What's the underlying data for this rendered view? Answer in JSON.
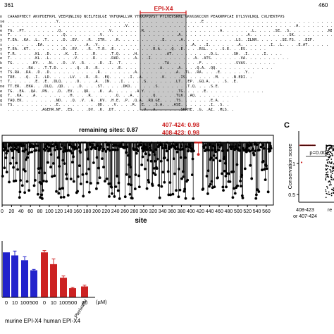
{
  "alignment": {
    "start_pos": "361",
    "end_pos": "460",
    "highlight_label": "EPI-X4",
    "row_labels": [
      "n",
      "se",
      "g",
      "e",
      "s",
      "y",
      "s",
      "y",
      "t",
      "e",
      "k",
      "n",
      "t",
      "s",
      "t",
      "ne",
      "e",
      "g",
      "g",
      "s",
      ""
    ],
    "rows": [
      "CAAADPHECY AKVFDEFKPL VEEPQNLIKQ NCELFEQLGE YKFQNALLVR YTKKVPQVST PTLVEVSRNL GKVGSKCCKH PEAKRMPCAE DYLSVVLNQL CVLHEKTPVS",
      ". . . . . . . . . . .Y. . . . . . . . . . . . . . . . . . . . . .  . . . . . . . . .E . . . . . . . . . . . . . . . . . . . . . . . . . . . . . . . . . .A . . . . . . . . . . . . . . . . .",
      ". . . . . . . . . . . . . . . . . . . . . . . . . .V. . . . . . . . . . . . . . . . . . . . . . . . . . . . . . . . . . . . .A. . . . . . . . . . .E. . . . . . . . . . . . . . . . .",
      "TG. .PT. . . . . . . .Q. . . . . . . . . . .V. . . . . . .R. . . . . . . . . . . . . . . . .A. . . . . . .L. . . . .SE. .S. . . . . . . . .NE. . . . . .",
      "T. . . . . . . . . . . .Q. . . . . . . .V. . . . . . . . . . . . . . . . .A. . . . . . . . . . . . . . .A. . . . . . . . .SK. . . . . . . . . . .SE. .L. .",
      "T.EA. .KA. .L. .T. . . .D. .EV. . .R. .ITR. . .R. . . . . . . . . .E. . . .A. . . . . . . . . . . .LS. .ILNR. . . . . .SE.FS. . .EIF.",
      ". . . . . . .EA. . . . . . . . . .A. .V. . . . . . . . . . . . . . . . . . . . .A. . .I. . . . . . .A. . . . . . .I. .L. . . .E.AT. . . . .",
      "T.EA. .KT. . . . . . . .D. .EV. . .R. .T.R. .E. . . . . . . . .R.A. . .Q. .E. . . .RSL. . . .S.E. . .ES. . . . .",
      "T.R. . . . .KL. .D. . . .K. .I. . . .R. . . .T.Q. . . .H. . . . . . .AT. . . . . . . . .D.L. . . .SH. .I. . . .I. . . .",
      "T. . . . . .KL. .L. . . . . .V. . . .R. . . .RAD. . . .A. . .I. . . . . . . . . .A. .ATS. . . . . . .VA. . . . . . . . . .",
      "TG. . . . .KY. . .N. . .D. .V. .R. . . .R. .I. .T. . . . . . . . . .TA. . . . . . .F. . . . . . . .SVAS. . . . . . .",
      ". . . . .RA. . .T.T.D. . . . .Q. .D. .R. . . . .E. . . . . . . . .A. . . .A. . . .Q.A. .QQ. . . . . . . . . . . . .",
      "TS.RA. .RA. .D. .D. . . . . . . . . . .R. . . . . . . .A. . . . . . . . .A. .TL. .RA. . . .E. . . . . .Y. .",
      "TRE. . .Q. .I. .LD. . . . .LV. . .R. .R. .EQ. . . . .I. .A. . . . .K. . . .IS. . . . . . .M. . . .N.EDI. .",
      "T. . . . . .E. .E. .DLQ. . . .D. . . .A. .IN. . .I. . . . .S. . . . . . .LT. .EP. .GQ.A. . . .S. .E.",
      "TT.ER. .EKA. . .DLQ. .QD. . . .D. . . .ST. . . . .DKD. . . . . .S. . . . . . .T.Q. . . .S.E.",
      "TG. .EA. .QA. .PN. . .D. .EV. . .QR. . .K. .A. . . . . .A.Y. . . . . . . .TG. . . . .E. . . . . . . . . . . . .",
      "T. .KA. . .A. . . . . . . .H. . . .R. . . . . .Q. . .A. . . . .Q. . . . .TLK. .AQ. . . . . . . . . .",
      "TAQ.EK. . . . . . . .ND. . .Q. .V. .A. .KV. .H.E. .P. .Q.A. .RQ.GE. . . .TS. . . . . . .E.A. . .",
      "TS. . . . . . . . . .E. . . . . . . . .QD. . .V. . . .R. .E. . .S.A. . .ASE. . . . . . .I. .S. .",
      ". . . . . . . .AGEHR.NF. .ES. . . .DV. .K. .DT. . . . . . .V. .A. . . . . .SKRHE. .G. .AI. .MLS. ."
    ]
  },
  "chart_data": [
    {
      "type": "lollipop",
      "xlabel": "site",
      "ylabel": "",
      "xlim": [
        0,
        575
      ],
      "ylim": [
        -0.05,
        1.05
      ],
      "xticks": [
        0,
        20,
        40,
        60,
        80,
        100,
        120,
        140,
        160,
        180,
        200,
        220,
        240,
        260,
        280,
        300,
        320,
        340,
        360,
        380,
        400,
        420,
        440,
        460,
        480,
        500,
        520,
        540,
        560
      ],
      "annotations": [
        {
          "text": "remaining sites: 0.87",
          "color": "#000000"
        },
        {
          "text": "407-424: 0.98",
          "color": "#cc2222"
        },
        {
          "text": "408-423: 0.98",
          "color": "#cc2222"
        }
      ],
      "series": [
        {
          "color": "#000000",
          "highlight_color": "#cc2222",
          "highlight_range": [
            407,
            424
          ]
        }
      ]
    },
    {
      "type": "scatter",
      "panel": "C",
      "ylabel": "Conservation score",
      "yticks": [
        "0.5",
        "1"
      ],
      "ylim": [
        0.4,
        1.15
      ],
      "categories": [
        "408-423\nor 407-424",
        "re"
      ],
      "pvalue": "p=0.00",
      "colors": {
        "group1": "#cc2222",
        "group2": "#000000"
      }
    },
    {
      "type": "bar",
      "unit": "(µM)",
      "categories": [
        "0",
        "10",
        "100",
        "500",
        "0",
        "10",
        "100",
        "500",
        "10"
      ],
      "group_labels": [
        "murine EPI-X4",
        "human EPI-X4",
        "Plerixafor"
      ],
      "values": [
        103,
        96,
        85,
        62,
        103,
        76,
        45,
        21,
        25
      ],
      "errors": [
        0,
        10,
        8,
        2,
        4,
        12,
        4,
        2,
        3
      ],
      "colors": [
        "#2222cc",
        "#2222cc",
        "#2222cc",
        "#2222cc",
        "#cc2222",
        "#cc2222",
        "#cc2222",
        "#cc2222",
        "#cc2222"
      ]
    }
  ]
}
